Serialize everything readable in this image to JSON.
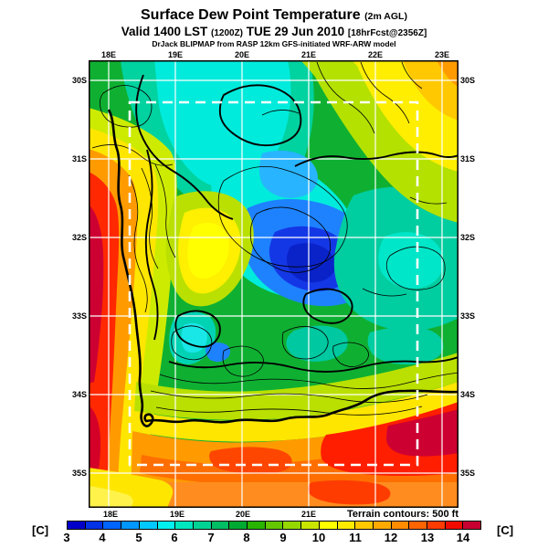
{
  "page_bg": "#ffffff",
  "header": {
    "title_main": "Surface Dew Point Temperature",
    "title_suffix": "(2m AGL)",
    "valid_prefix": "Valid 1400 LST",
    "valid_zulu": "(1200Z)",
    "valid_date": "TUE 29 Jun 2010",
    "valid_fcst": "[18hrFcst@2356Z]",
    "model_line": "DrJack BLIPMAP from RASP 12km GFS-initiated WRF-ARW model"
  },
  "axes": {
    "top": [
      "18E",
      "19E",
      "20E",
      "21E",
      "22E",
      "23E"
    ],
    "bottom": [
      "18E",
      "19E",
      "20E",
      "21E"
    ],
    "left": [
      "30S",
      "31S",
      "32S",
      "33S",
      "34S",
      "35S"
    ],
    "right": [
      "30S",
      "31S",
      "32S",
      "33S",
      "34S",
      "35S"
    ]
  },
  "footer": {
    "terrain_note": "Terrain contours: 500 ft",
    "units_left": "[C]",
    "units_right": "[C]"
  },
  "chart_data": {
    "type": "heatmap",
    "title": "Surface Dew Point Temperature (2m AGL)",
    "valid": "1400 LST (1200Z) TUE 29 Jun 2010",
    "forecast_info": "18hrFcst@2356Z",
    "model": "DrJack BLIPMAP from RASP 12km GFS-initiated WRF-ARW model",
    "units": "C",
    "x_ticks_longitude": [
      "18E",
      "19E",
      "20E",
      "21E",
      "22E",
      "23E"
    ],
    "y_ticks_latitude": [
      "30S",
      "31S",
      "32S",
      "33S",
      "34S",
      "35S"
    ],
    "grid": "white solid 1-degree graticule; white dashed inner model-domain box ~18.3E-22.6E / 30.5S-34.9S",
    "overlays": [
      "black terrain contours every 500 ft",
      "thick black coastline of Western Cape, South Africa"
    ],
    "colorbar": {
      "min": 3,
      "max": 14,
      "step_per_segment": 0.5,
      "position": "bottom",
      "tick_labels": [
        "3",
        "4",
        "5",
        "6",
        "7",
        "8",
        "9",
        "10",
        "11",
        "12",
        "13",
        "14"
      ],
      "segment_colors": [
        "#0000c8",
        "#0032e6",
        "#0064ff",
        "#0096ff",
        "#00c8ff",
        "#00f0f0",
        "#00e6be",
        "#00d294",
        "#00be64",
        "#00aa32",
        "#28b400",
        "#64c800",
        "#96d700",
        "#c8e600",
        "#ffff00",
        "#ffeb00",
        "#ffc800",
        "#ffaa00",
        "#ff8c00",
        "#ff6400",
        "#ff3c00",
        "#f00a00",
        "#c80032"
      ]
    },
    "sampled_grid_estimate": {
      "lons_e": [
        18,
        19,
        20,
        21,
        22,
        23
      ],
      "lats_s": [
        30,
        31,
        32,
        33,
        34,
        35
      ],
      "dewpoint_c_rows_by_lat": [
        [
          6.5,
          6.0,
          5.5,
          6.5,
          10.0,
          11.0
        ],
        [
          10.5,
          7.0,
          5.0,
          6.0,
          7.5,
          8.5
        ],
        [
          13.0,
          10.0,
          4.5,
          4.0,
          6.0,
          7.0
        ],
        [
          13.5,
          11.0,
          7.0,
          7.5,
          6.5,
          7.0
        ],
        [
          12.5,
          11.0,
          11.5,
          12.0,
          12.5,
          13.5
        ],
        [
          12.0,
          12.5,
          12.5,
          13.0,
          13.0,
          12.5
        ]
      ]
    },
    "notable_features": [
      "blue minimum pocket ~3.5-4 C centered near 20.5E 32S",
      "red maximum band 13-14 C along the west coast strip 17.8-18.3E",
      "red/dark-red 13-14 C band along south coast near 34.5-35S",
      "cyan/green mountain interior 5-8 C with dense terrain contours",
      "yellow-orange 10-12 C in northeast corner and Karoo margins"
    ]
  }
}
